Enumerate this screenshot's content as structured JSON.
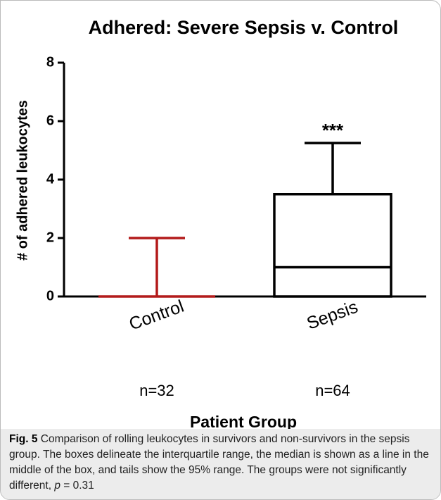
{
  "chart_data": {
    "type": "box",
    "title": "Adhered: Severe Sepsis v. Control",
    "xlabel": "Patient Group",
    "ylabel": "# of adhered leukocytes",
    "categories": [
      "Control",
      "Sepsis"
    ],
    "n_labels": [
      "n=32",
      "n=64"
    ],
    "boxes": [
      {
        "whislo": 0,
        "q1": 0,
        "med": 0,
        "q3": 0,
        "whishi": 2,
        "color": "#b31b1b"
      },
      {
        "whislo": 0,
        "q1": 0,
        "med": 1,
        "q3": 3.5,
        "whishi": 5.25,
        "color": "#000000"
      }
    ],
    "annotations": [
      {
        "text": "***",
        "x": "Sepsis"
      }
    ],
    "ylim": [
      0,
      8
    ],
    "yticks": [
      0,
      2,
      4,
      6,
      8
    ]
  },
  "caption": {
    "label": "Fig. 5",
    "text": " Comparison of rolling leukocytes in survivors and non-survivors in the sepsis group. The boxes delineate the interquartile range, the median is shown as a line in the middle of the box, and tails show the 95% range. The groups were not significantly different, ",
    "p_symbol": "p",
    "p_value": " = 0.31"
  }
}
